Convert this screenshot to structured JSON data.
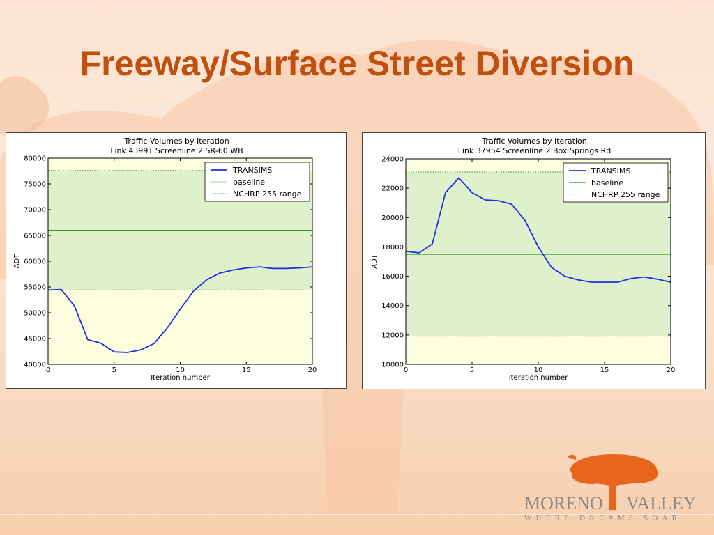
{
  "slide": {
    "title": "Freeway/Surface Street Diversion"
  },
  "logo": {
    "word1": "MORENO",
    "word2": "VALLEY",
    "tagline": "WHERE DREAMS SOAR",
    "tree_color": "#e8651e"
  },
  "colors": {
    "title": "#c0500e",
    "transims": "#1f2fe0",
    "baseline": "#2a9a2a",
    "range_fill": "#dff0cd",
    "outside_fill": "#fdfde0"
  },
  "chart_data": [
    {
      "type": "line",
      "title": "Traffic Volumes by Iteration",
      "subtitle": "Link 43991 Screenline 2 SR-60 WB",
      "xlabel": "Iteration number",
      "ylabel": "ADT",
      "xlim": [
        0,
        20
      ],
      "ylim": [
        40000,
        80000
      ],
      "xticks": [
        0,
        5,
        10,
        15,
        20
      ],
      "yticks": [
        40000,
        45000,
        50000,
        55000,
        60000,
        65000,
        70000,
        75000,
        80000
      ],
      "legend": [
        "TRANSIMS",
        "baseline",
        "NCHRP 255 range"
      ],
      "legend_position": "top-right",
      "series": [
        {
          "name": "TRANSIMS",
          "x": [
            0,
            1,
            2,
            3,
            4,
            5,
            6,
            7,
            8,
            9,
            10,
            11,
            12,
            13,
            14,
            15,
            16,
            17,
            18,
            19,
            20
          ],
          "values": [
            54400,
            54500,
            51300,
            44800,
            44100,
            42400,
            42300,
            42800,
            44000,
            47000,
            50700,
            54200,
            56400,
            57700,
            58300,
            58700,
            58900,
            58600,
            58600,
            58700,
            58900
          ]
        }
      ],
      "baseline": 66000,
      "nchrp_range": [
        54500,
        77600
      ]
    },
    {
      "type": "line",
      "title": "Traffic Volumes by Iteration",
      "subtitle": "Link 37954 Screenline 2 Box Springs Rd",
      "xlabel": "Iteration number",
      "ylabel": "ADT",
      "xlim": [
        0,
        20
      ],
      "ylim": [
        10000,
        24000
      ],
      "xticks": [
        0,
        5,
        10,
        15,
        20
      ],
      "yticks": [
        10000,
        12000,
        14000,
        16000,
        18000,
        20000,
        22000,
        24000
      ],
      "legend": [
        "TRANSIMS",
        "baseline",
        "NCHRP 255 range"
      ],
      "legend_position": "top-right",
      "series": [
        {
          "name": "TRANSIMS",
          "x": [
            0,
            1,
            2,
            3,
            4,
            5,
            6,
            7,
            8,
            9,
            10,
            11,
            12,
            13,
            14,
            15,
            16,
            17,
            18,
            19,
            20
          ],
          "values": [
            17700,
            17600,
            18200,
            21700,
            22700,
            21700,
            21200,
            21150,
            20900,
            19800,
            18000,
            16600,
            16000,
            15750,
            15600,
            15600,
            15600,
            15850,
            15950,
            15800,
            15600
          ]
        }
      ],
      "baseline": 17500,
      "nchrp_range": [
        11900,
        23100
      ]
    }
  ]
}
